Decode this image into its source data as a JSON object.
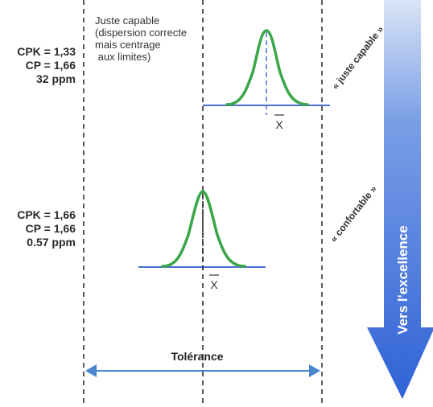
{
  "case1": {
    "cpk": "CPK = 1,33",
    "cp": "CP = 1,66",
    "ppm": "32 ppm",
    "note_lines": [
      "Juste capable",
      "(dispersion correcte",
      "mais centrage",
      " aux limites)"
    ],
    "label": "« juste capable »",
    "mean_label": "X"
  },
  "case2": {
    "cpk": "CPK = 1,66",
    "cp": "CP = 1,66",
    "ppm": "0.57 ppm",
    "label": "« confortable »",
    "mean_label": "X"
  },
  "tolerance_label": "Tolérance",
  "excellence_label": "Vers l'excellence",
  "colors": {
    "curve": "#3aa648",
    "baseline": "#4a6fd0",
    "arrow": "#3d6fd8",
    "tolerance": "#4a86d0"
  }
}
